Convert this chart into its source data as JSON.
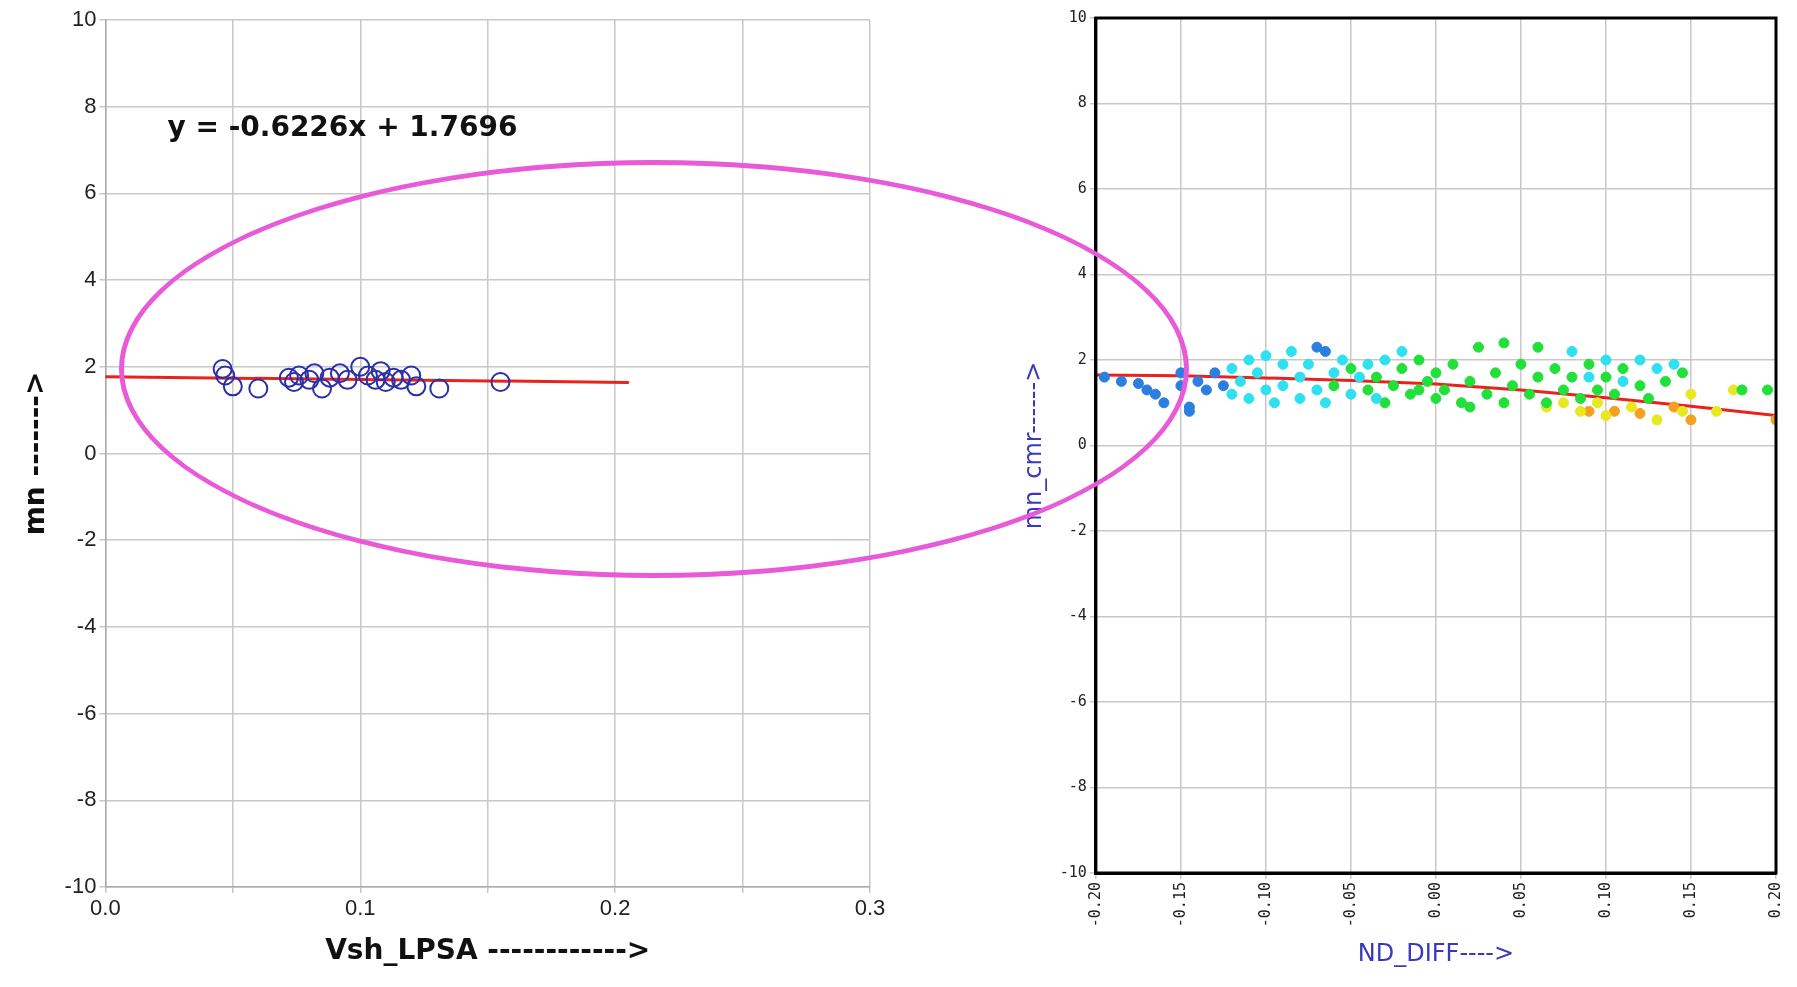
{
  "chart_data": [
    {
      "type": "scatter",
      "xlabel": "Vsh_LPSA ------------>",
      "ylabel": "mn ------->",
      "xlim": [
        0,
        0.3
      ],
      "ylim": [
        -10,
        10
      ],
      "xticks": [
        {
          "value": 0,
          "label": "0.0"
        },
        {
          "value": 0.05,
          "label": null
        },
        {
          "value": 0.1,
          "label": "0.1"
        },
        {
          "value": 0.15,
          "label": null
        },
        {
          "value": 0.2,
          "label": "0.2"
        },
        {
          "value": 0.25,
          "label": null
        },
        {
          "value": 0.3,
          "label": "0.3"
        }
      ],
      "yticks": [
        -10,
        -8,
        -6,
        -4,
        -2,
        0,
        2,
        4,
        6,
        8,
        10
      ],
      "grid": true,
      "legend": false,
      "annotations": [
        "y = -0.6226x + 1.7696"
      ],
      "series": [
        {
          "color": "#2b2fa8",
          "marker": "circle",
          "x": [
            0.046,
            0.047,
            0.05,
            0.06,
            0.072,
            0.074,
            0.076,
            0.08,
            0.082,
            0.085,
            0.088,
            0.092,
            0.095,
            0.1,
            0.103,
            0.106,
            0.108,
            0.11,
            0.113,
            0.116,
            0.12,
            0.122,
            0.131,
            0.155
          ],
          "values": [
            1.95,
            1.8,
            1.55,
            1.5,
            1.75,
            1.65,
            1.8,
            1.7,
            1.85,
            1.5,
            1.75,
            1.85,
            1.7,
            2.0,
            1.8,
            1.7,
            1.9,
            1.65,
            1.75,
            1.7,
            1.8,
            1.55,
            1.5,
            1.65
          ]
        },
        {
          "type": "line",
          "color": "#e8231e",
          "marker": "none",
          "x": [
            0,
            0.205
          ],
          "values": [
            1.77,
            1.64
          ]
        }
      ]
    },
    {
      "type": "scatter",
      "xlabel": "ND_DIFF---->",
      "ylabel": "mn_cmr------>",
      "xlim": [
        -0.2,
        0.2
      ],
      "ylim": [
        -10,
        10
      ],
      "xticks": [
        {
          "value": -0.2,
          "label": "-0.20"
        },
        {
          "value": -0.15,
          "label": "-0.15"
        },
        {
          "value": -0.1,
          "label": "-0.10"
        },
        {
          "value": -0.05,
          "label": "-0.05"
        },
        {
          "value": 0,
          "label": "0.00"
        },
        {
          "value": 0.05,
          "label": "0.05"
        },
        {
          "value": 0.1,
          "label": "0.10"
        },
        {
          "value": 0.15,
          "label": "0.15"
        },
        {
          "value": 0.2,
          "label": "0.20"
        }
      ],
      "yticks": [
        -10,
        -8,
        -6,
        -4,
        -2,
        0,
        2,
        4,
        6,
        8,
        10
      ],
      "grid": true,
      "marker": "circle",
      "legend": false,
      "series": [
        {
          "color": "#2a7fe0",
          "x": [
            -0.195,
            -0.185,
            -0.175,
            -0.17,
            -0.165,
            -0.16,
            -0.15,
            -0.15,
            -0.145,
            -0.14,
            -0.135,
            -0.13,
            -0.125,
            -0.07,
            -0.065,
            -0.145
          ],
          "values": [
            1.6,
            1.5,
            1.45,
            1.3,
            1.2,
            1.0,
            1.7,
            1.4,
            0.9,
            1.5,
            1.3,
            1.7,
            1.4,
            2.3,
            2.2,
            0.8
          ]
        },
        {
          "color": "#2ee0f0",
          "x": [
            -0.12,
            -0.12,
            -0.115,
            -0.11,
            -0.11,
            -0.105,
            -0.1,
            -0.1,
            -0.095,
            -0.09,
            -0.09,
            -0.085,
            -0.08,
            -0.08,
            -0.075,
            -0.07,
            -0.065,
            -0.06,
            -0.055,
            -0.05,
            -0.045,
            -0.04,
            -0.035,
            -0.03,
            -0.02,
            0.08,
            0.09,
            0.1,
            0.12,
            0.13,
            0.14,
            0.11
          ],
          "values": [
            1.2,
            1.8,
            1.5,
            2.0,
            1.1,
            1.7,
            2.1,
            1.3,
            1.0,
            1.9,
            1.4,
            2.2,
            1.1,
            1.6,
            1.9,
            1.3,
            1.0,
            1.7,
            2.0,
            1.2,
            1.6,
            1.9,
            1.1,
            2.0,
            2.2,
            2.2,
            1.6,
            2.0,
            2.0,
            1.8,
            1.9,
            1.5
          ]
        },
        {
          "color": "#22e03a",
          "x": [
            -0.06,
            -0.05,
            -0.04,
            -0.035,
            -0.03,
            -0.025,
            -0.02,
            -0.015,
            -0.01,
            -0.005,
            0,
            0,
            0.005,
            0.01,
            0.015,
            0.02,
            0.025,
            0.03,
            0.035,
            0.04,
            0.04,
            0.045,
            0.05,
            0.055,
            0.06,
            0.06,
            0.065,
            0.07,
            0.075,
            0.08,
            0.085,
            0.09,
            0.095,
            0.1,
            0.105,
            0.11,
            0.12,
            0.125,
            0.135,
            0.145,
            0.18,
            0.195,
            -0.01,
            0.02
          ],
          "values": [
            1.4,
            1.8,
            1.3,
            1.6,
            1.0,
            1.4,
            1.8,
            1.2,
            2.0,
            1.5,
            1.1,
            1.7,
            1.3,
            1.9,
            1.0,
            1.5,
            2.3,
            1.2,
            1.7,
            2.4,
            1.0,
            1.4,
            1.9,
            1.2,
            2.3,
            1.6,
            1.0,
            1.8,
            1.3,
            1.6,
            1.1,
            1.9,
            1.3,
            1.6,
            1.2,
            1.8,
            1.4,
            1.1,
            1.5,
            1.7,
            1.3,
            1.3,
            1.3,
            0.9
          ]
        },
        {
          "color": "#e8e820",
          "x": [
            0.065,
            0.075,
            0.085,
            0.095,
            0.1,
            0.115,
            0.13,
            0.145,
            0.15,
            0.165,
            0.175
          ],
          "values": [
            0.9,
            1.0,
            0.8,
            1.0,
            0.7,
            0.9,
            0.6,
            0.8,
            1.2,
            0.8,
            1.3
          ]
        },
        {
          "color": "#f5a020",
          "x": [
            0.09,
            0.105,
            0.12,
            0.14,
            0.15,
            0.2
          ],
          "values": [
            0.8,
            0.8,
            0.75,
            0.9,
            0.6,
            0.6
          ]
        },
        {
          "type": "line",
          "color": "#e8231e",
          "marker": "none",
          "x": [
            -0.2,
            -0.15,
            -0.1,
            -0.05,
            0,
            0.05,
            0.1,
            0.15,
            0.2
          ],
          "values": [
            1.65,
            1.63,
            1.58,
            1.52,
            1.44,
            1.3,
            1.12,
            0.92,
            0.7
          ]
        }
      ]
    }
  ]
}
